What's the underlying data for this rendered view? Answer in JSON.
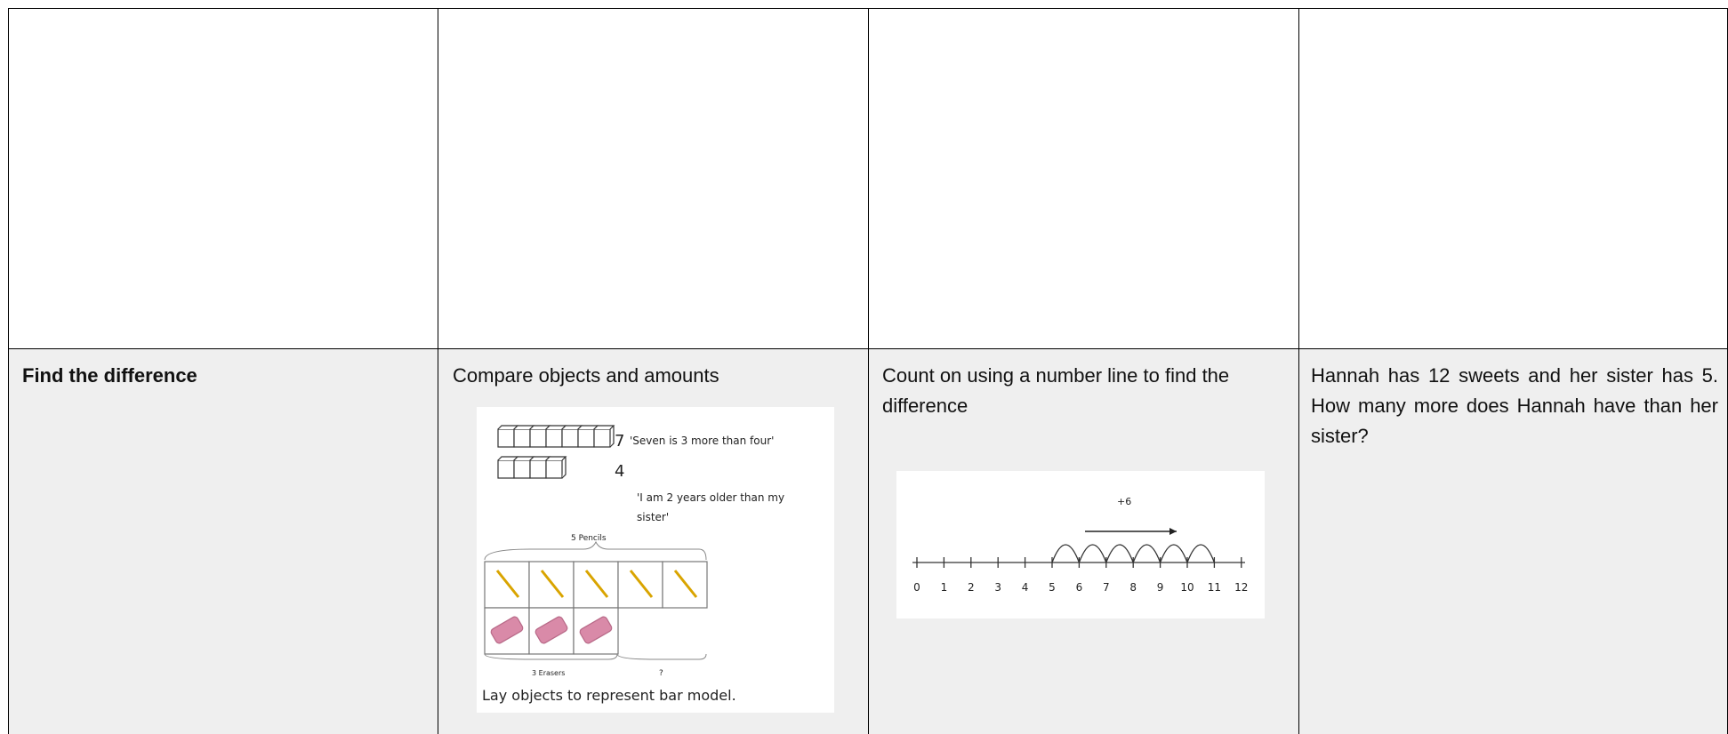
{
  "table": {
    "rows": [
      {
        "cells": [
          "Find the difference",
          "Compare objects and amounts",
          "Count on using a number line to find the difference",
          "Hannah has 12 sweets and her sister has 5. How many more does Hannah have than her sister?"
        ]
      }
    ]
  },
  "bar_model": {
    "top_count": "7",
    "top_quote": "'Seven is 3 more than four'",
    "bottom_count": "4",
    "older_line1": "'I am 2 years older than my",
    "older_line2": "sister'",
    "pencils": "5 Pencils",
    "erasers": "3 Erasers",
    "unknown": "?",
    "caption": "Lay objects to represent bar model."
  },
  "number_line": {
    "jump_label": "+6",
    "ticks": [
      0,
      1,
      2,
      3,
      4,
      5,
      6,
      7,
      8,
      9,
      10,
      11,
      12
    ]
  }
}
